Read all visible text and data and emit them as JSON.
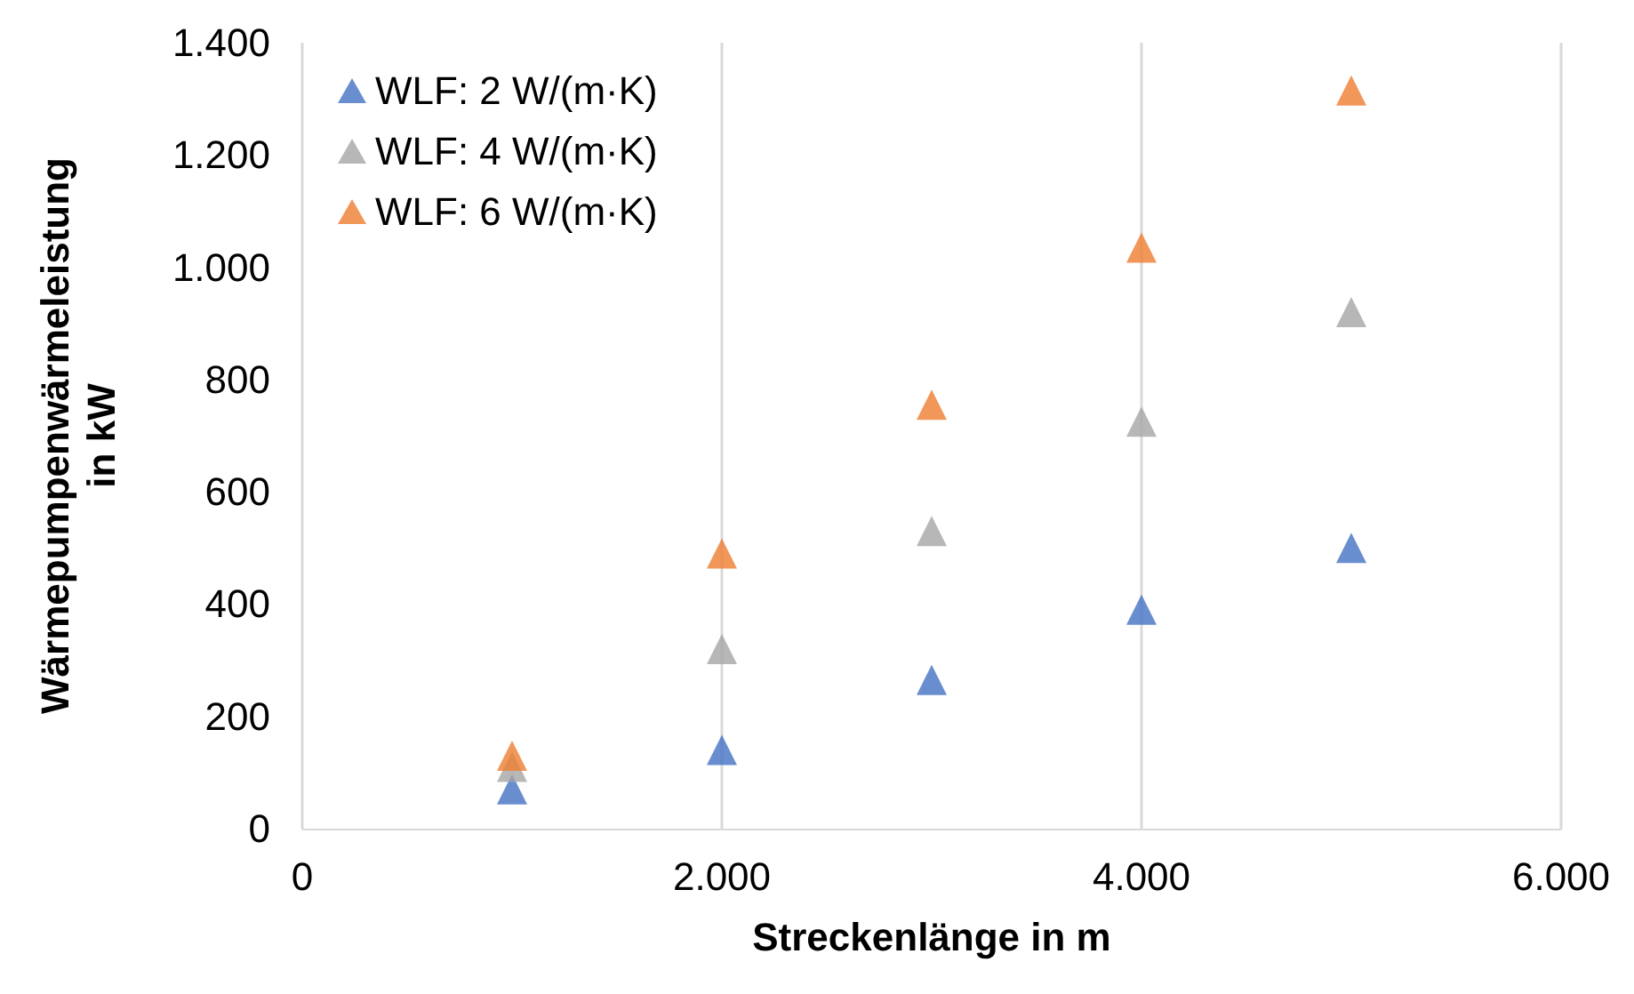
{
  "chart_data": {
    "type": "scatter",
    "xlabel": "Streckenlänge in m",
    "ylabel": "Wärmepumpenwärmeleistung\nin kW",
    "x": [
      1000,
      2000,
      3000,
      4000,
      5000
    ],
    "series": [
      {
        "name": "WLF: 2 W/(m·K)",
        "color": "#4472c4",
        "values": [
          70,
          140,
          265,
          390,
          500
        ]
      },
      {
        "name": "WLF: 4 W/(m·K)",
        "color": "#a5a5a5",
        "values": [
          110,
          320,
          530,
          725,
          920
        ]
      },
      {
        "name": "WLF: 6 W/(m·K)",
        "color": "#ed7d31",
        "values": [
          130,
          490,
          755,
          1035,
          1315
        ]
      }
    ],
    "xlim": [
      0,
      6000
    ],
    "xticks": [
      0,
      {
        "value": 2000,
        "label": "2.000"
      },
      {
        "value": 4000,
        "label": "4.000"
      },
      {
        "value": 6000,
        "label": "6.000"
      }
    ],
    "ylim": [
      0,
      1400
    ],
    "yticks": [
      0,
      200,
      400,
      600,
      800,
      {
        "value": 1000,
        "label": "1.000"
      },
      {
        "value": 1200,
        "label": "1.200"
      },
      {
        "value": 1400,
        "label": "1.400"
      }
    ],
    "grid": "x",
    "legend": "top left",
    "marker": "triangle"
  }
}
